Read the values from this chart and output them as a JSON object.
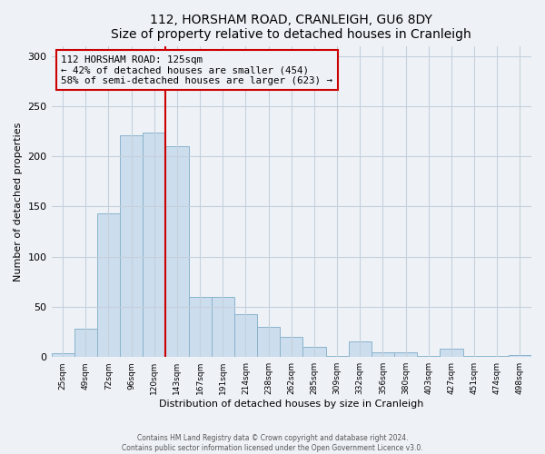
{
  "title": "112, HORSHAM ROAD, CRANLEIGH, GU6 8DY",
  "subtitle": "Size of property relative to detached houses in Cranleigh",
  "xlabel": "Distribution of detached houses by size in Cranleigh",
  "ylabel": "Number of detached properties",
  "bar_labels": [
    "25sqm",
    "49sqm",
    "72sqm",
    "96sqm",
    "120sqm",
    "143sqm",
    "167sqm",
    "191sqm",
    "214sqm",
    "238sqm",
    "262sqm",
    "285sqm",
    "309sqm",
    "332sqm",
    "356sqm",
    "380sqm",
    "403sqm",
    "427sqm",
    "451sqm",
    "474sqm",
    "498sqm"
  ],
  "bar_values": [
    4,
    28,
    143,
    221,
    224,
    210,
    60,
    60,
    43,
    30,
    20,
    10,
    1,
    16,
    5,
    5,
    1,
    8,
    1,
    1,
    2
  ],
  "bar_color": "#ccdded",
  "bar_edge_color": "#8ab4cc",
  "ylim": [
    0,
    310
  ],
  "yticks": [
    0,
    50,
    100,
    150,
    200,
    250,
    300
  ],
  "property_line_x": 4.5,
  "property_line_color": "#cc0000",
  "annotation_title": "112 HORSHAM ROAD: 125sqm",
  "annotation_line1": "← 42% of detached houses are smaller (454)",
  "annotation_line2": "58% of semi-detached houses are larger (623) →",
  "annotation_box_color": "#cc0000",
  "footer_line1": "Contains HM Land Registry data © Crown copyright and database right 2024.",
  "footer_line2": "Contains public sector information licensed under the Open Government Licence v3.0.",
  "bg_color": "#eef2f7",
  "grid_color": "#c5d0dc"
}
